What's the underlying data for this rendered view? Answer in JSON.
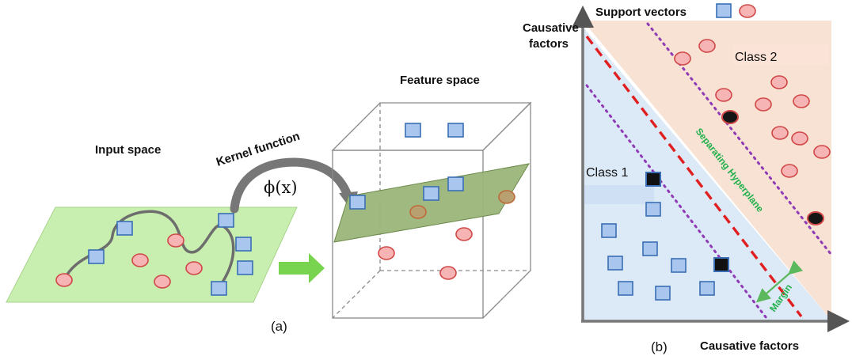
{
  "panel_a": {
    "input_space_label": "Input space",
    "kernel_function_label": "Kernel function",
    "phi_label": "ϕ(x)",
    "feature_space_label": "Feature space",
    "caption": "(a)"
  },
  "panel_b": {
    "support_vectors_label": "Support vectors",
    "y_axis_label_line1": "Causative",
    "y_axis_label_line2": "factors",
    "x_axis_label": "Causative factors",
    "class1_label": "Class 1",
    "class2_label": "Class 2",
    "hyperplane_label": "Separating Hyperplane",
    "margin_label": "Margin",
    "caption": "(b)"
  },
  "colors": {
    "input_plane": "#c9efb0",
    "feature_plane": "#9bb57a",
    "arrow_green": "#78d44f",
    "class1_region": "#dce9f7",
    "class2_region": "#f7e2d3",
    "hyperplane": "#e02020",
    "margin_lines": "#8e3bb5",
    "hyperplane_text": "#22b14c"
  }
}
